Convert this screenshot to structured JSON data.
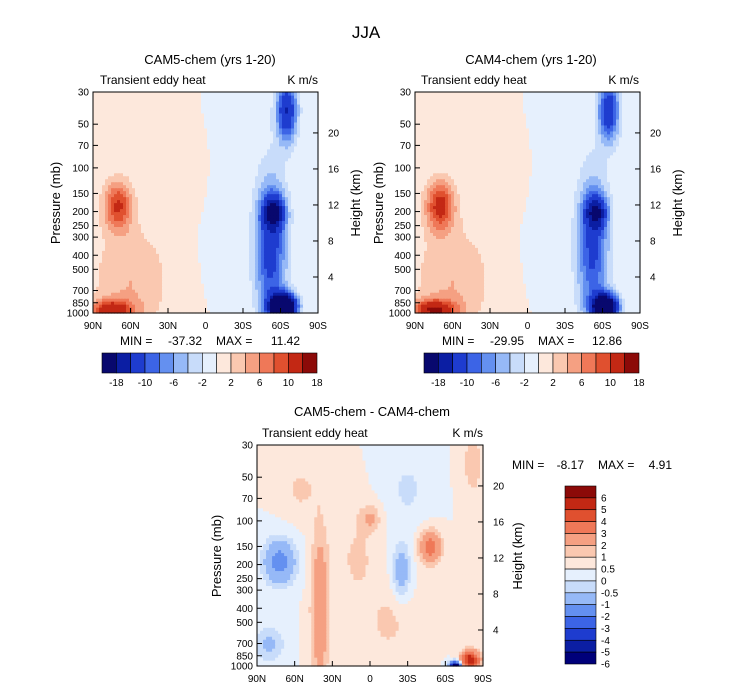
{
  "figure_title": "JJA",
  "chart_data": [
    {
      "type": "heatmap",
      "title": "CAM5-chem (yrs 1-20)",
      "subtitle_left": "Transient eddy heat",
      "subtitle_right": "K m/s",
      "ylabel": "Pressure (mb)",
      "ylabel_right": "Height (km)",
      "xticks": [
        "90N",
        "60N",
        "30N",
        "0",
        "30S",
        "60S",
        "90S"
      ],
      "yticks": [
        "30",
        "50",
        "70",
        "100",
        "150",
        "200",
        "250",
        "300",
        "400",
        "500",
        "700",
        "850",
        "1000"
      ],
      "yticks_right": [
        "20",
        "16",
        "12",
        "8",
        "4"
      ],
      "stats": {
        "min_label": "MIN =",
        "min": "-37.32",
        "max_label": "MAX =",
        "max": "11.42"
      },
      "colorbar_labels": [
        "-18",
        "-10",
        "-6",
        "-2",
        "2",
        "6",
        "10",
        "18"
      ],
      "features": [
        {
          "lat": 70,
          "p": 180,
          "value": 10,
          "sigma_lat": 8,
          "sigma_logp": 0.28
        },
        {
          "lat": 75,
          "p": 950,
          "value": 11.4,
          "sigma_lat": 12,
          "sigma_logp": 0.12
        },
        {
          "lat": 60,
          "p": 600,
          "value": 4,
          "sigma_lat": 22,
          "sigma_logp": 0.65
        },
        {
          "lat": 15,
          "p": 140,
          "value": 1.5,
          "sigma_lat": 8,
          "sigma_logp": 0.3
        },
        {
          "lat": -55,
          "p": 200,
          "value": -14,
          "sigma_lat": 6,
          "sigma_logp": 0.18
        },
        {
          "lat": -62,
          "p": 900,
          "value": -37.3,
          "sigma_lat": 7,
          "sigma_logp": 0.14
        },
        {
          "lat": -52,
          "p": 350,
          "value": -12,
          "sigma_lat": 9,
          "sigma_logp": 0.8
        },
        {
          "lat": -65,
          "p": 40,
          "value": -14,
          "sigma_lat": 6,
          "sigma_logp": 0.35
        },
        {
          "lat": -10,
          "p": 300,
          "value": -1.2,
          "sigma_lat": 8,
          "sigma_logp": 0.5
        }
      ]
    },
    {
      "type": "heatmap",
      "title": "CAM4-chem (yrs 1-20)",
      "subtitle_left": "Transient eddy heat",
      "subtitle_right": "K m/s",
      "ylabel": "Pressure (mb)",
      "ylabel_right": "Height (km)",
      "xticks": [
        "90N",
        "60N",
        "30N",
        "0",
        "30S",
        "60S",
        "90S"
      ],
      "yticks": [
        "30",
        "50",
        "70",
        "100",
        "150",
        "200",
        "250",
        "300",
        "400",
        "500",
        "700",
        "850",
        "1000"
      ],
      "yticks_right": [
        "20",
        "16",
        "12",
        "8",
        "4"
      ],
      "stats": {
        "min_label": "MIN =",
        "min": "-29.95",
        "max_label": "MAX =",
        "max": "12.86"
      },
      "colorbar_labels": [
        "-18",
        "-10",
        "-6",
        "-2",
        "2",
        "6",
        "10",
        "18"
      ],
      "features": [
        {
          "lat": 70,
          "p": 180,
          "value": 11,
          "sigma_lat": 8,
          "sigma_logp": 0.28
        },
        {
          "lat": 75,
          "p": 950,
          "value": 12.9,
          "sigma_lat": 12,
          "sigma_logp": 0.12
        },
        {
          "lat": 60,
          "p": 600,
          "value": 4,
          "sigma_lat": 22,
          "sigma_logp": 0.65
        },
        {
          "lat": 15,
          "p": 140,
          "value": 1.5,
          "sigma_lat": 8,
          "sigma_logp": 0.3
        },
        {
          "lat": -55,
          "p": 200,
          "value": -13,
          "sigma_lat": 6,
          "sigma_logp": 0.18
        },
        {
          "lat": -62,
          "p": 900,
          "value": -30,
          "sigma_lat": 7,
          "sigma_logp": 0.14
        },
        {
          "lat": -52,
          "p": 350,
          "value": -11,
          "sigma_lat": 9,
          "sigma_logp": 0.8
        },
        {
          "lat": -65,
          "p": 40,
          "value": -13,
          "sigma_lat": 6,
          "sigma_logp": 0.35
        },
        {
          "lat": -10,
          "p": 300,
          "value": -1.2,
          "sigma_lat": 8,
          "sigma_logp": 0.5
        }
      ]
    },
    {
      "type": "heatmap",
      "title": "CAM5-chem - CAM4-chem",
      "subtitle_left": "Transient eddy heat",
      "subtitle_right": "K m/s",
      "ylabel": "Pressure (mb)",
      "ylabel_right": "Height (km)",
      "xticks": [
        "90N",
        "60N",
        "30N",
        "0",
        "30S",
        "60S",
        "90S"
      ],
      "yticks": [
        "30",
        "50",
        "70",
        "100",
        "150",
        "200",
        "250",
        "300",
        "400",
        "500",
        "700",
        "850",
        "1000"
      ],
      "yticks_right": [
        "20",
        "16",
        "12",
        "8",
        "4"
      ],
      "stats": {
        "min_label": "MIN =",
        "min": "-8.17",
        "max_label": "MAX =",
        "max": "4.91"
      },
      "colorbar_labels": [
        "6",
        "5",
        "4",
        "3",
        "2",
        "1",
        "0.5",
        "0",
        "-0.5",
        "-1",
        "-2",
        "-3",
        "-4",
        "-5",
        "-6"
      ],
      "features": [
        {
          "lat": 40,
          "p": 400,
          "value": 1.8,
          "sigma_lat": 5,
          "sigma_logp": 0.9
        },
        {
          "lat": 72,
          "p": 190,
          "value": -2.5,
          "sigma_lat": 9,
          "sigma_logp": 0.25
        },
        {
          "lat": 80,
          "p": 700,
          "value": -1.2,
          "sigma_lat": 8,
          "sigma_logp": 0.2
        },
        {
          "lat": -48,
          "p": 150,
          "value": 2.6,
          "sigma_lat": 6,
          "sigma_logp": 0.18
        },
        {
          "lat": 0,
          "p": 95,
          "value": 1.0,
          "sigma_lat": 6,
          "sigma_logp": 0.15
        },
        {
          "lat": -25,
          "p": 220,
          "value": -1.6,
          "sigma_lat": 5,
          "sigma_logp": 0.3
        },
        {
          "lat": -80,
          "p": 900,
          "value": 4.9,
          "sigma_lat": 5,
          "sigma_logp": 0.1
        },
        {
          "lat": -68,
          "p": 990,
          "value": -8.2,
          "sigma_lat": 3,
          "sigma_logp": 0.05
        },
        {
          "lat": 10,
          "p": 180,
          "value": 0.6,
          "sigma_lat": 12,
          "sigma_logp": 0.5
        },
        {
          "lat": -15,
          "p": 500,
          "value": 0.6,
          "sigma_lat": 14,
          "sigma_logp": 0.4
        },
        {
          "lat": -30,
          "p": 60,
          "value": -0.6,
          "sigma_lat": 12,
          "sigma_logp": 0.4
        },
        {
          "lat": 55,
          "p": 60,
          "value": 0.6,
          "sigma_lat": 10,
          "sigma_logp": 0.3
        },
        {
          "lat": -82,
          "p": 40,
          "value": 0.8,
          "sigma_lat": 6,
          "sigma_logp": 0.4
        }
      ]
    }
  ],
  "colors": {
    "top_scale": [
      "#08086e",
      "#0b1ea3",
      "#1e3ccf",
      "#3c64e6",
      "#6490f0",
      "#96b9f7",
      "#c8dcfa",
      "#e6f0fd",
      "#fde8dc",
      "#fac8b0",
      "#f5a082",
      "#ef7858",
      "#e0502f",
      "#c32814",
      "#8c0a08"
    ],
    "diff_scale": [
      "#00007a",
      "#0b1ea3",
      "#1e3ccf",
      "#3c64e6",
      "#6490f0",
      "#96b9f7",
      "#c8dcfa",
      "#e6f0fd",
      "#fde8dc",
      "#fac8b0",
      "#f5a082",
      "#ef7858",
      "#e0502f",
      "#c32814",
      "#8c0a08"
    ]
  }
}
